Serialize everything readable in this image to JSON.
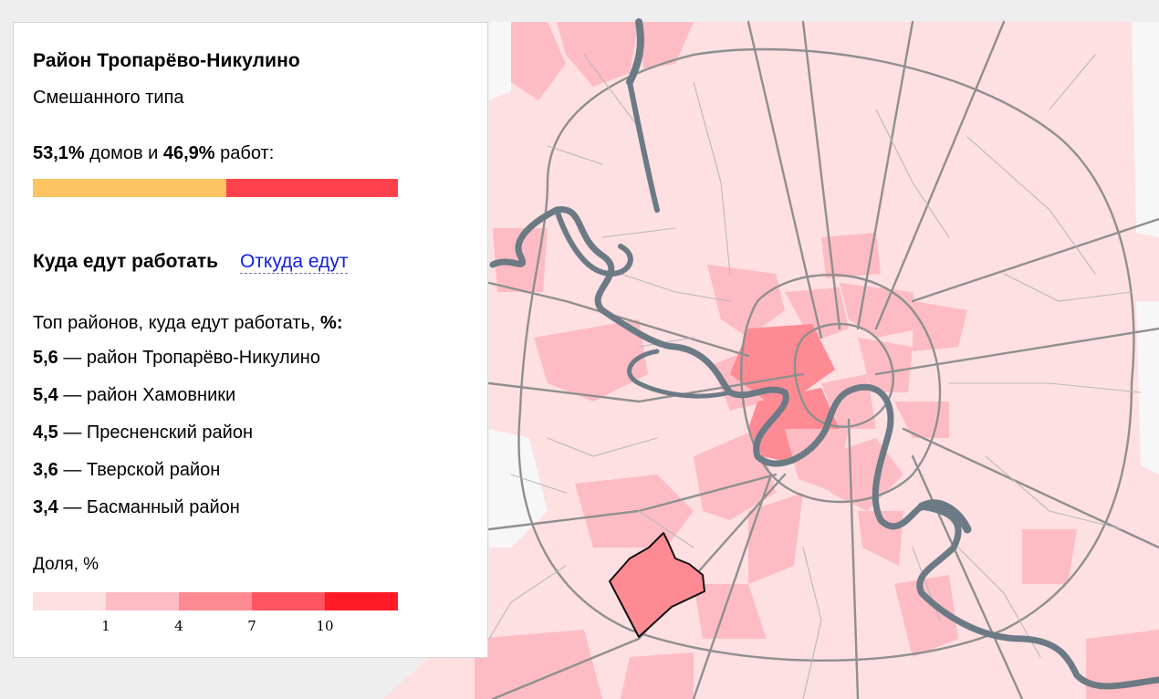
{
  "panel": {
    "district_name": "Район Тропарёво-Никулино",
    "district_type": "Смешанного типа",
    "share": {
      "home_percent": "53,1%",
      "home_text": "домов и",
      "work_percent": "46,9%",
      "work_text": "работ:",
      "home_fraction": 0.531,
      "work_fraction": 0.469,
      "home_color": "#fcc462",
      "work_color": "#ff404d"
    },
    "tabs": {
      "active": "Куда едут работать",
      "link": "Откуда едут"
    },
    "top_title": "Топ районов, куда едут работать,",
    "top_title_unit": "%:",
    "top_list": [
      {
        "value": "5,6",
        "name": "— район Тропарёво-Никулино"
      },
      {
        "value": "5,4",
        "name": "— район Хамовники"
      },
      {
        "value": "4,5",
        "name": "— Пресненский район"
      },
      {
        "value": "3,6",
        "name": "— Тверской район"
      },
      {
        "value": "3,4",
        "name": "— Басманный район"
      }
    ]
  },
  "legend": {
    "title": "Доля, %",
    "colors": [
      "#fedfe2",
      "#fdbcc3",
      "#fe8a93",
      "#ff5460",
      "#ff1a26"
    ],
    "ticks": [
      "1",
      "4",
      "7",
      "10"
    ]
  },
  "map": {
    "background_color": "#eeeeee",
    "road_color": "#8f8f8f",
    "river_color": "#6b7a85",
    "selected_border_color": "#111111"
  }
}
